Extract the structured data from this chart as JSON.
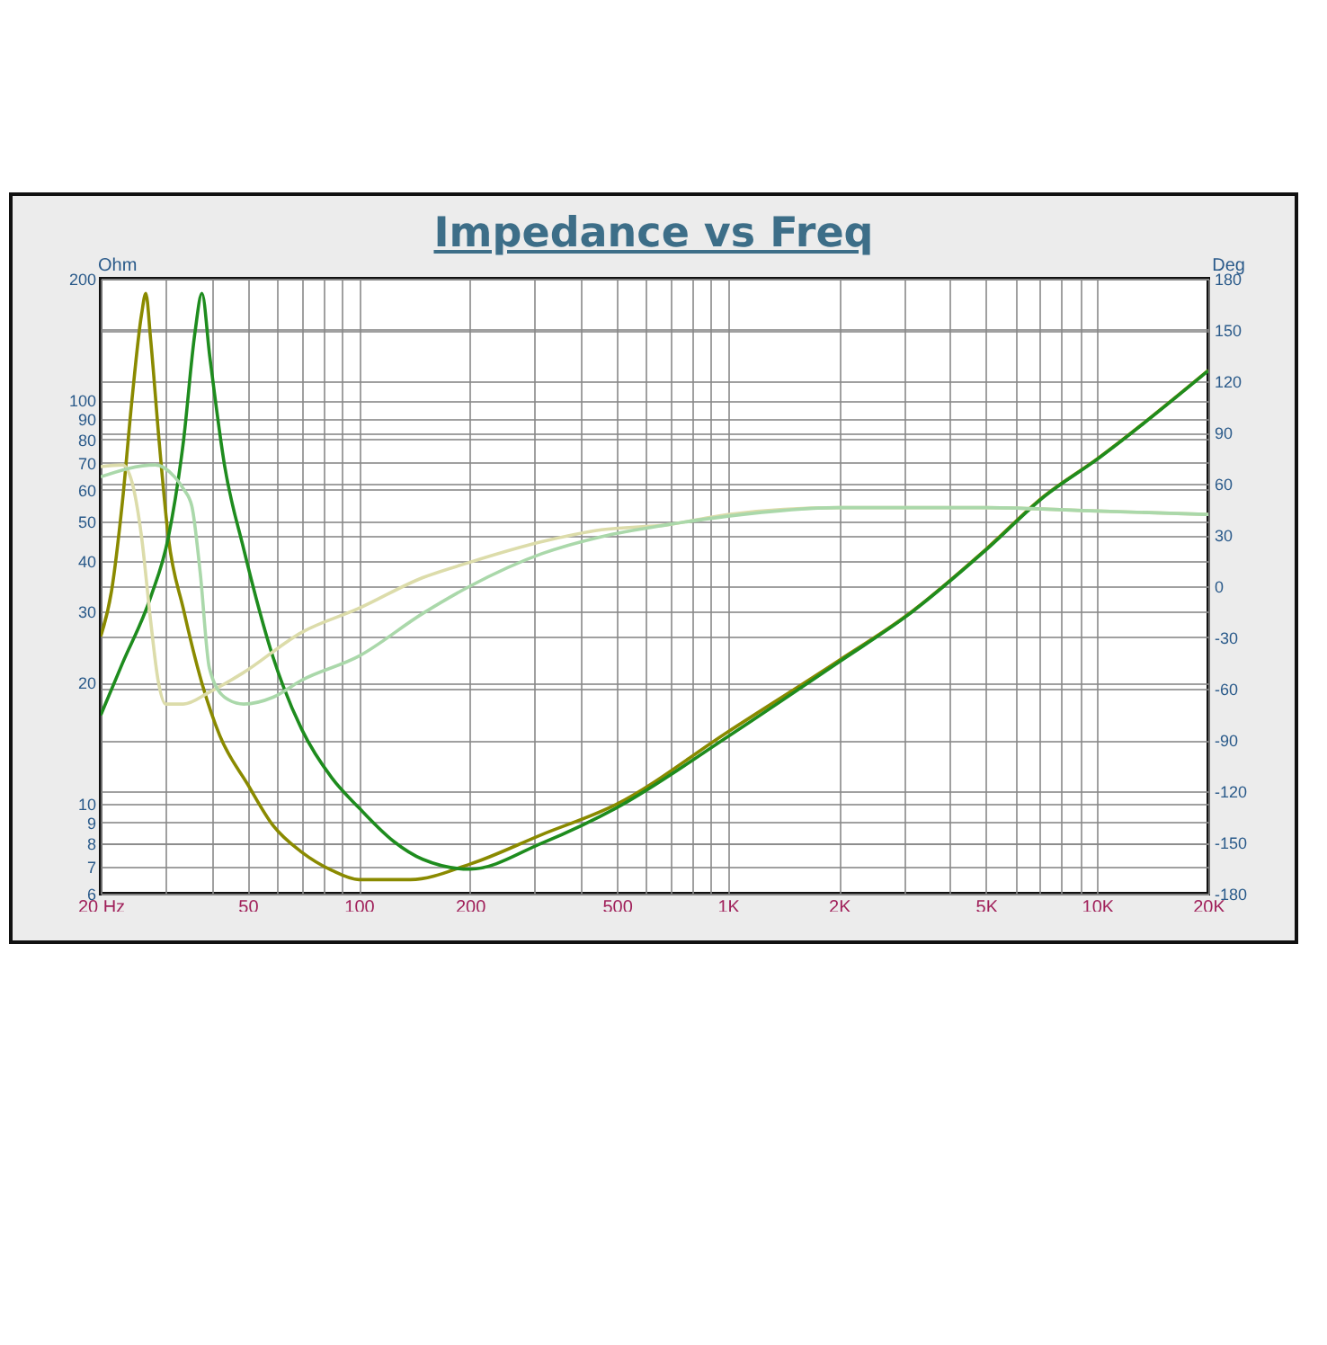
{
  "chart_data": {
    "type": "line",
    "title": "Impedance vs Freq",
    "ylabel": "Ohm",
    "y2label": "Deg",
    "log": "xy",
    "grid": true,
    "xlim": [
      20,
      20000
    ],
    "xticks": [
      {
        "value": 20,
        "label": "20  Hz"
      },
      {
        "value": 30,
        "label": null
      },
      {
        "value": 40,
        "label": null
      },
      50,
      {
        "value": 60,
        "label": null
      },
      {
        "value": 70,
        "label": null
      },
      {
        "value": 80,
        "label": null
      },
      {
        "value": 90,
        "label": null
      },
      100,
      200,
      {
        "value": 300,
        "label": null
      },
      {
        "value": 400,
        "label": null
      },
      500,
      {
        "value": 600,
        "label": null
      },
      {
        "value": 700,
        "label": null
      },
      {
        "value": 800,
        "label": null
      },
      {
        "value": 900,
        "label": null
      },
      {
        "value": 1000,
        "label": "1K"
      },
      {
        "value": 2000,
        "label": "2K"
      },
      {
        "value": 3000,
        "label": null
      },
      {
        "value": 4000,
        "label": null
      },
      {
        "value": 5000,
        "label": "5K"
      },
      {
        "value": 6000,
        "label": null
      },
      {
        "value": 7000,
        "label": null
      },
      {
        "value": 8000,
        "label": null
      },
      {
        "value": 9000,
        "label": null
      },
      {
        "value": 10000,
        "label": "10K"
      },
      {
        "value": 20000,
        "label": "20K"
      }
    ],
    "ylim": [
      6,
      200
    ],
    "yticks": [
      6,
      7,
      8,
      9,
      10,
      20,
      30,
      40,
      50,
      60,
      70,
      80,
      90,
      100,
      {
        "value": 150,
        "label": null
      },
      200
    ],
    "y2lim": [
      -180,
      180
    ],
    "y2ticks": [
      -180,
      -150,
      -120,
      -90,
      -60,
      -30,
      0,
      30,
      60,
      90,
      120,
      150,
      180
    ],
    "series": [
      {
        "color": "#8a8a00",
        "x": [
          20,
          21.4,
          22.9,
          24.3,
          25.8,
          26.5,
          27.3,
          28.8,
          30.5,
          33.5,
          37.5,
          42,
          50,
          58.6,
          70.1,
          84.6,
          100,
          138,
          200,
          313,
          500,
          1000,
          2000,
          3060,
          5000,
          7200,
          10000,
          20000
        ],
        "values": [
          26,
          33.7,
          56,
          100,
          163,
          184,
          142,
          79,
          45.8,
          30.4,
          20.1,
          14.8,
          11.2,
          8.85,
          7.6,
          6.85,
          6.5,
          6.5,
          7.1,
          8.4,
          10,
          15.1,
          22.7,
          29.4,
          42.8,
          58,
          71.6,
          118.6
        ]
      },
      {
        "color": "#1e8c1e",
        "x": [
          20,
          22.9,
          27.3,
          30.5,
          33.5,
          36,
          37.6,
          39.5,
          43.3,
          48.8,
          58.6,
          70.1,
          84.6,
          100,
          124,
          149,
          200,
          313,
          500,
          1000,
          2000,
          3060,
          5000,
          7200,
          10000,
          20000
        ],
        "values": [
          16.6,
          22.3,
          32.5,
          45.8,
          79,
          147,
          184,
          128,
          69,
          42.8,
          23.1,
          15.3,
          11.6,
          9.8,
          8.1,
          7.3,
          6.9,
          8,
          9.8,
          14.7,
          22.5,
          29.3,
          42.6,
          57.8,
          71.4,
          118.4
        ]
      },
      {
        "color": "#dcdcaa",
        "axis": "y2",
        "x": [
          20,
          22.9,
          24.3,
          25.8,
          27.3,
          28.6,
          30,
          33.5,
          39.4,
          48.4,
          70.1,
          100,
          149,
          200,
          313,
          454,
          686,
          1000,
          2000,
          5000,
          10000,
          20000
        ],
        "values": [
          70,
          71,
          61,
          29,
          -20,
          -55,
          -69,
          -69,
          -62,
          -51,
          -27,
          -13,
          5,
          14,
          26,
          33,
          36,
          42,
          46,
          46,
          44,
          42
        ]
      },
      {
        "color": "#aad8aa",
        "axis": "y2",
        "x": [
          20,
          28.1,
          31.7,
          33.5,
          35.3,
          37.2,
          39.4,
          43.3,
          48.8,
          58.6,
          70.1,
          100,
          149,
          200,
          313,
          454,
          686,
          1000,
          2000,
          5000,
          10000,
          20000
        ],
        "values": [
          64,
          71,
          64,
          57,
          47,
          8,
          -48,
          -65,
          -69,
          -65,
          -55,
          -41,
          -16,
          0,
          19,
          29,
          36,
          41,
          46,
          46,
          44,
          42
        ]
      }
    ]
  }
}
